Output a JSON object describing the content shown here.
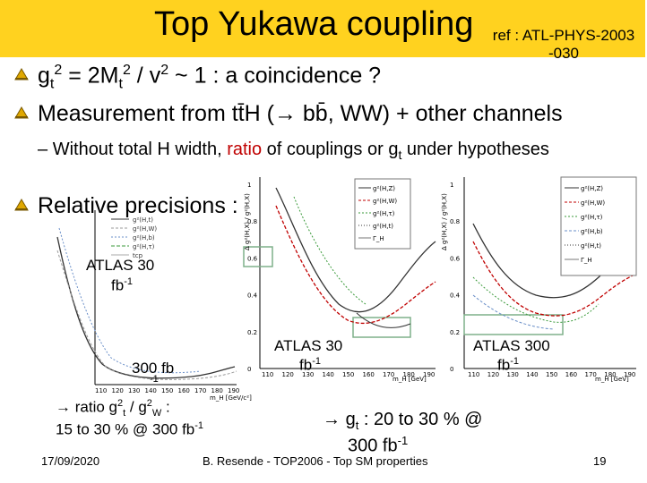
{
  "header": {
    "title": "Top Yukawa coupling",
    "ref_line1": "ref : ATL-PHYS-2003",
    "ref_line2": "-030",
    "accent_color": "#ffd21f"
  },
  "bullets": [
    {
      "g": "g",
      "t": "t",
      "two": "2",
      "rest": " = 2M",
      "t2": "t",
      "two2": "2",
      "rest2": " / v",
      "two3": "2",
      "rest3": " ~ 1 : a coincidence ?"
    },
    {
      "text": "Measurement from tt̄H (→ bb̄, WW) + other channels"
    },
    {
      "text": "Relative precisions :"
    }
  ],
  "subbullet": {
    "dash": "–",
    "pre": "Without total H width, ",
    "highlight": "ratio",
    "mid": " of couplings or g",
    "sub": "t",
    "post": " under hypotheses"
  },
  "plot_left": {
    "xticks": [
      "110",
      "120",
      "130",
      "140",
      "150",
      "160",
      "170",
      "180",
      "190"
    ],
    "xlabel": "m_H [GeV/c²]",
    "legend": [
      "g²(H,t)",
      "g²(H,W)",
      "g²(H,b)",
      "g²(H,τ)",
      "tcp"
    ]
  },
  "plot_mid": {
    "yticks": [
      "1",
      "0.8",
      "0.6",
      "0.4",
      "0.2",
      "0"
    ],
    "xticks": [
      "110",
      "120",
      "130",
      "140",
      "150",
      "160",
      "170",
      "180",
      "190"
    ],
    "xlabel": "m_H [GeV]",
    "ylabel": "Δ g²(H,X) / g²(H,X)",
    "legend": [
      "g²(H,Z)",
      "g²(H,W)",
      "g²(H,τ)",
      "g²(H,t)",
      "Γ_H"
    ]
  },
  "plot_right": {
    "yticks": [
      "1",
      "0.8",
      "0.6",
      "0.4",
      "0.2",
      "0"
    ],
    "xticks": [
      "110",
      "120",
      "130",
      "140",
      "150",
      "160",
      "170",
      "180",
      "190"
    ],
    "xlabel": "m_H [GeV]",
    "ylabel": "Δ g²(H,X) / g²(H,X)",
    "legend": [
      "g²(H,Z)",
      "g²(H,W)",
      "g²(H,τ)",
      "g²(H,b)",
      "g²(H,t)",
      "Γ_H"
    ]
  },
  "labels": {
    "atlas30_left": "ATLAS 30",
    "fb_left": "fb",
    "fb_left_exp": "-1",
    "fb300_left": "300 fb",
    "fb300_left_exp": "-1",
    "atlas30_mid": "ATLAS 30",
    "fb_mid": "fb",
    "fb_mid_exp": "-1",
    "atlas300_right": "ATLAS 300",
    "fb_right": "fb",
    "fb_right_exp": "-1"
  },
  "conclusions": {
    "left_l1_pre": "ratio g",
    "left_l1_sup": "2",
    "left_l1_sub": "t",
    "left_l1_mid": " / g",
    "left_l1_sup2": "2",
    "left_l1_sub2": "W",
    "left_l1_post": " :",
    "left_l2": "15 to 30 % @ 300 fb",
    "left_l2_exp": "-1",
    "right_l1_pre": "g",
    "right_l1_sub": "t",
    "right_l1_post": " : 20 to 30 % @",
    "right_l2": "300 fb",
    "right_l2_exp": "-1"
  },
  "footer": {
    "date": "17/09/2020",
    "center": "B. Resende - TOP2006 - Top SM properties",
    "page": "19"
  }
}
